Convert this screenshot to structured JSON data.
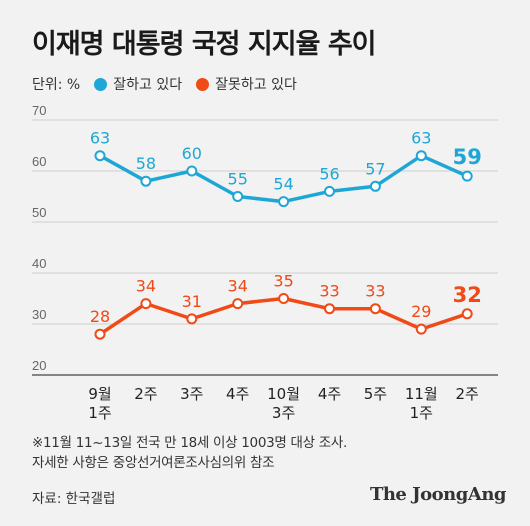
{
  "title": "이재명 대통령 국정 지지율 추이",
  "legend": {
    "unit": "단위: %",
    "items": [
      {
        "label": "잘하고 있다",
        "color": "#1ea7d6"
      },
      {
        "label": "잘못하고 있다",
        "color": "#f04a16"
      }
    ]
  },
  "chart_data": {
    "type": "line",
    "categories": [
      [
        "9월",
        "1주"
      ],
      [
        "2주"
      ],
      [
        "3주"
      ],
      [
        "4주"
      ],
      [
        "10월",
        "3주"
      ],
      [
        "4주"
      ],
      [
        "5주"
      ],
      [
        "11월",
        "1주"
      ],
      [
        "2주"
      ]
    ],
    "series": [
      {
        "name": "잘하고 있다",
        "color": "#1ea7d6",
        "values": [
          63,
          58,
          60,
          55,
          54,
          56,
          57,
          63,
          59
        ]
      },
      {
        "name": "잘못하고 있다",
        "color": "#f04a16",
        "values": [
          28,
          34,
          31,
          34,
          35,
          33,
          33,
          29,
          32
        ]
      }
    ],
    "ylim": [
      20,
      70
    ],
    "yticks": [
      20,
      30,
      40,
      50,
      60,
      70
    ],
    "grid": true
  },
  "notes": [
    "※11월 11~13일 전국 만 18세 이상 1003명 대상 조사.",
    "자세한 사항은 중앙선거여론조사심의위 참조"
  ],
  "source": "자료: 한국갤럽",
  "brand": "The JoongAng"
}
